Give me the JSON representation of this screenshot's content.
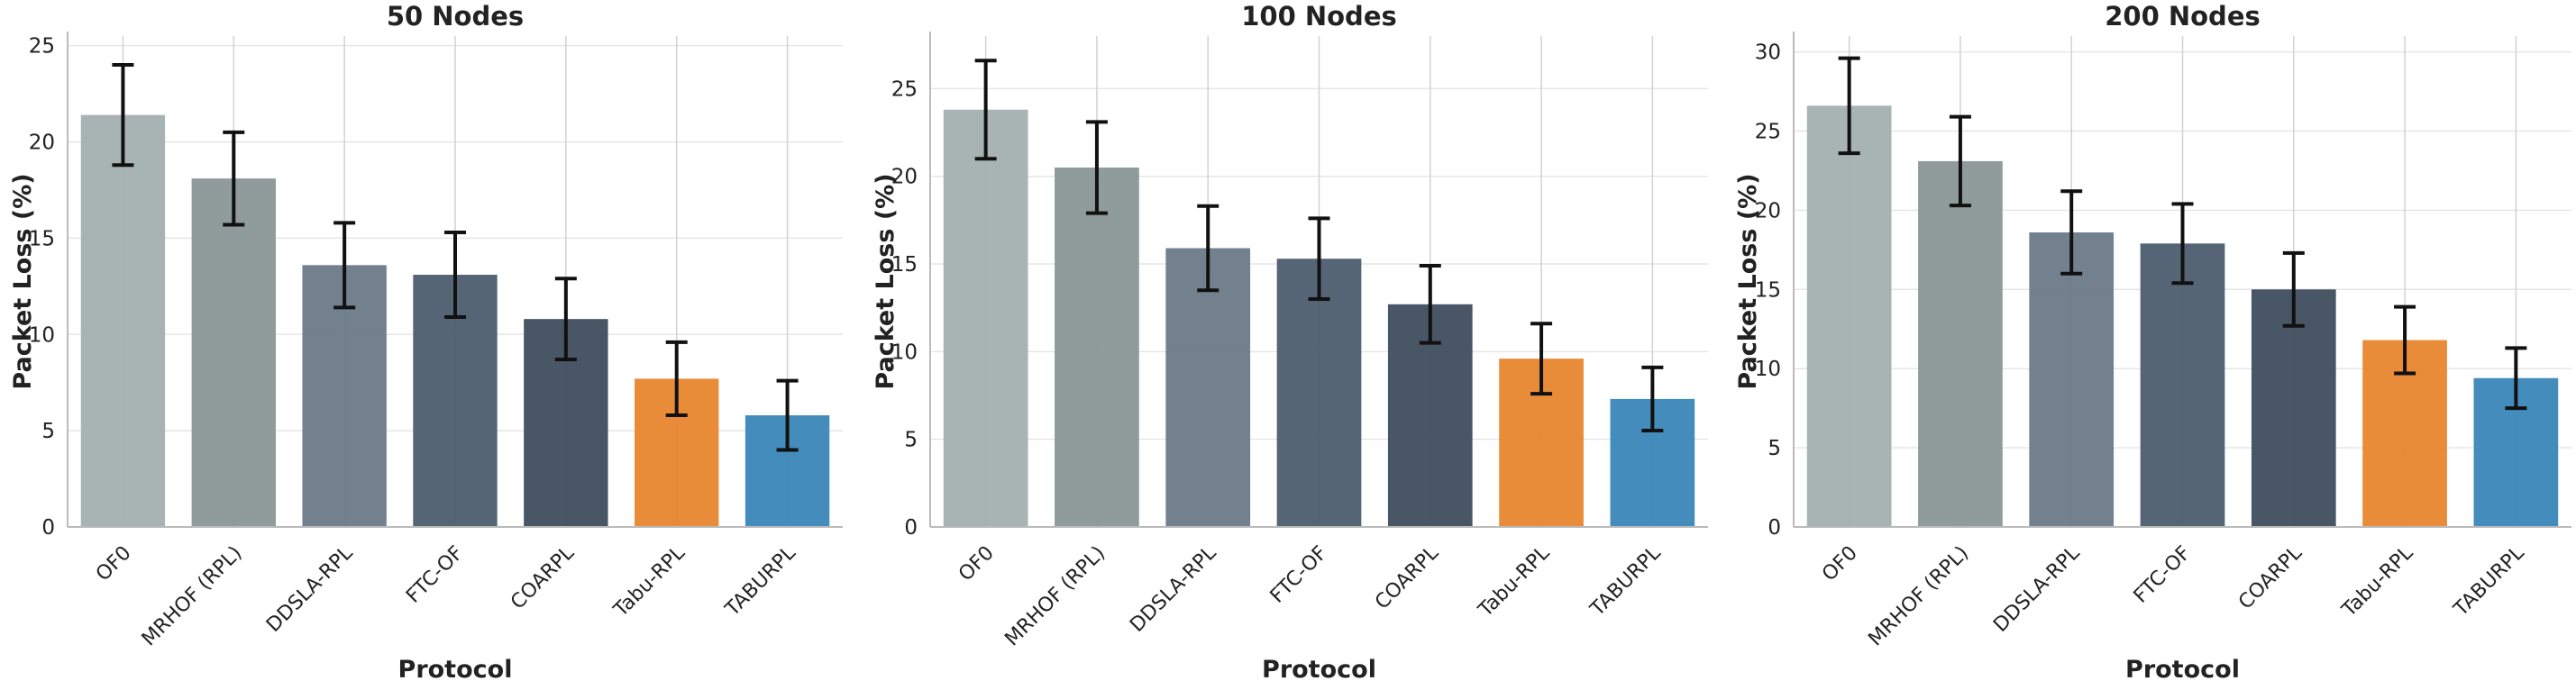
{
  "chart_data": [
    {
      "type": "bar",
      "title": "50 Nodes",
      "xlabel": "Protocol",
      "ylabel": "Packet Loss (%)",
      "categories": [
        "OF0",
        "MRHOF (RPL)",
        "DDSLA-RPL",
        "FTC-OF",
        "COARPL",
        "Tabu-RPL",
        "TABURPL"
      ],
      "values": [
        21.4,
        18.1,
        13.6,
        13.1,
        10.8,
        7.7,
        5.8
      ],
      "errors": [
        2.6,
        2.4,
        2.2,
        2.2,
        2.1,
        1.9,
        1.8
      ],
      "ylim": [
        0,
        25.5
      ],
      "yticks": [
        0,
        5,
        10,
        15,
        20,
        25
      ],
      "grid": "horizontal and vertical"
    },
    {
      "type": "bar",
      "title": "100 Nodes",
      "xlabel": "Protocol",
      "ylabel": "Packet Loss (%)",
      "categories": [
        "OF0",
        "MRHOF (RPL)",
        "DDSLA-RPL",
        "FTC-OF",
        "COARPL",
        "Tabu-RPL",
        "TABURPL"
      ],
      "values": [
        23.8,
        20.5,
        15.9,
        15.3,
        12.7,
        9.6,
        7.3
      ],
      "errors": [
        2.8,
        2.6,
        2.4,
        2.3,
        2.2,
        2.0,
        1.8
      ],
      "ylim": [
        0,
        28
      ],
      "yticks": [
        0,
        5,
        10,
        15,
        20,
        25
      ],
      "grid": "horizontal and vertical"
    },
    {
      "type": "bar",
      "title": "200 Nodes",
      "xlabel": "Protocol",
      "ylabel": "Packet Loss (%)",
      "categories": [
        "OF0",
        "MRHOF (RPL)",
        "DDSLA-RPL",
        "FTC-OF",
        "COARPL",
        "Tabu-RPL",
        "TABURPL"
      ],
      "values": [
        26.6,
        23.1,
        18.6,
        17.9,
        15.0,
        11.8,
        9.4
      ],
      "errors": [
        3.0,
        2.8,
        2.6,
        2.5,
        2.3,
        2.1,
        1.9
      ],
      "ylim": [
        0,
        31
      ],
      "yticks": [
        0,
        5,
        10,
        15,
        20,
        25,
        30
      ],
      "grid": "horizontal and vertical"
    }
  ],
  "colors": [
    "#a3b0b0",
    "#8a9696",
    "#6c7a89",
    "#4d5d6f",
    "#3f4d5e",
    "#e8862e",
    "#3a86b8"
  ]
}
